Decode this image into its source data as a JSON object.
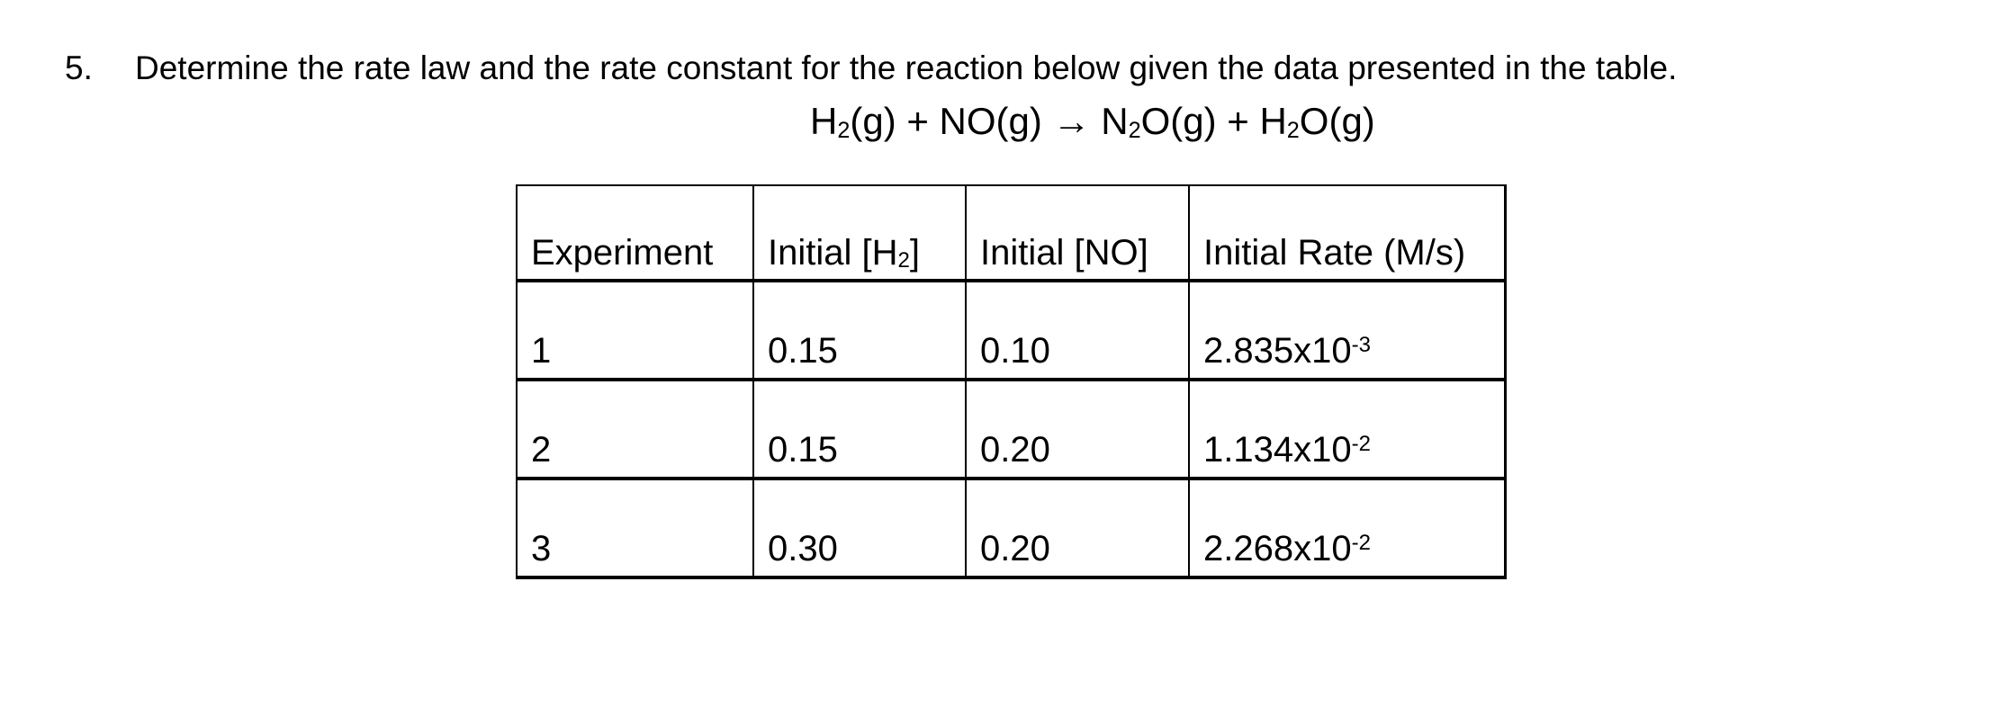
{
  "page": {
    "background": "#ffffff",
    "text_color": "#000000"
  },
  "question": {
    "number": "5.",
    "text": "Determine the rate law and the rate constant for the reaction below given the data presented in the table."
  },
  "equation": {
    "tokens": [
      {
        "t": "text",
        "v": "H"
      },
      {
        "t": "sub",
        "v": "2"
      },
      {
        "t": "text",
        "v": "(g) + NO(g) "
      },
      {
        "t": "arrow",
        "v": "→"
      },
      {
        "t": "text",
        "v": " N"
      },
      {
        "t": "sub",
        "v": "2"
      },
      {
        "t": "text",
        "v": "O(g) + H"
      },
      {
        "t": "sub",
        "v": "2"
      },
      {
        "t": "text",
        "v": "O(g)"
      }
    ]
  },
  "table": {
    "headers": [
      {
        "label_tokens": [
          {
            "t": "text",
            "v": "Experiment"
          }
        ]
      },
      {
        "label_tokens": [
          {
            "t": "text",
            "v": "Initial [H"
          },
          {
            "t": "sub",
            "v": "2"
          },
          {
            "t": "text",
            "v": "]"
          }
        ]
      },
      {
        "label_tokens": [
          {
            "t": "text",
            "v": "Initial [NO]"
          }
        ]
      },
      {
        "label_tokens": [
          {
            "t": "text",
            "v": "Initial Rate (M/s)"
          }
        ]
      }
    ],
    "rows": [
      {
        "experiment": "1",
        "initial_h2": "0.15",
        "initial_no": "0.10",
        "rate_tokens": [
          {
            "t": "text",
            "v": "2.835x10"
          },
          {
            "t": "sup",
            "v": "-3"
          }
        ]
      },
      {
        "experiment": "2",
        "initial_h2": "0.15",
        "initial_no": "0.20",
        "rate_tokens": [
          {
            "t": "text",
            "v": "1.134x10"
          },
          {
            "t": "sup",
            "v": "-2"
          }
        ]
      },
      {
        "experiment": "3",
        "initial_h2": "0.30",
        "initial_no": "0.20",
        "rate_tokens": [
          {
            "t": "text",
            "v": "2.268x10"
          },
          {
            "t": "sup",
            "v": "-2"
          }
        ]
      }
    ]
  },
  "chart_data": {
    "type": "table",
    "title": "Initial rates data for H2(g) + NO(g) -> N2O(g) + H2O(g)",
    "columns": [
      "Experiment",
      "Initial [H2]",
      "Initial [NO]",
      "Initial Rate (M/s)"
    ],
    "rows": [
      [
        1,
        0.15,
        0.1,
        0.002835
      ],
      [
        2,
        0.15,
        0.2,
        0.01134
      ],
      [
        3,
        0.3,
        0.2,
        0.02268
      ]
    ]
  }
}
